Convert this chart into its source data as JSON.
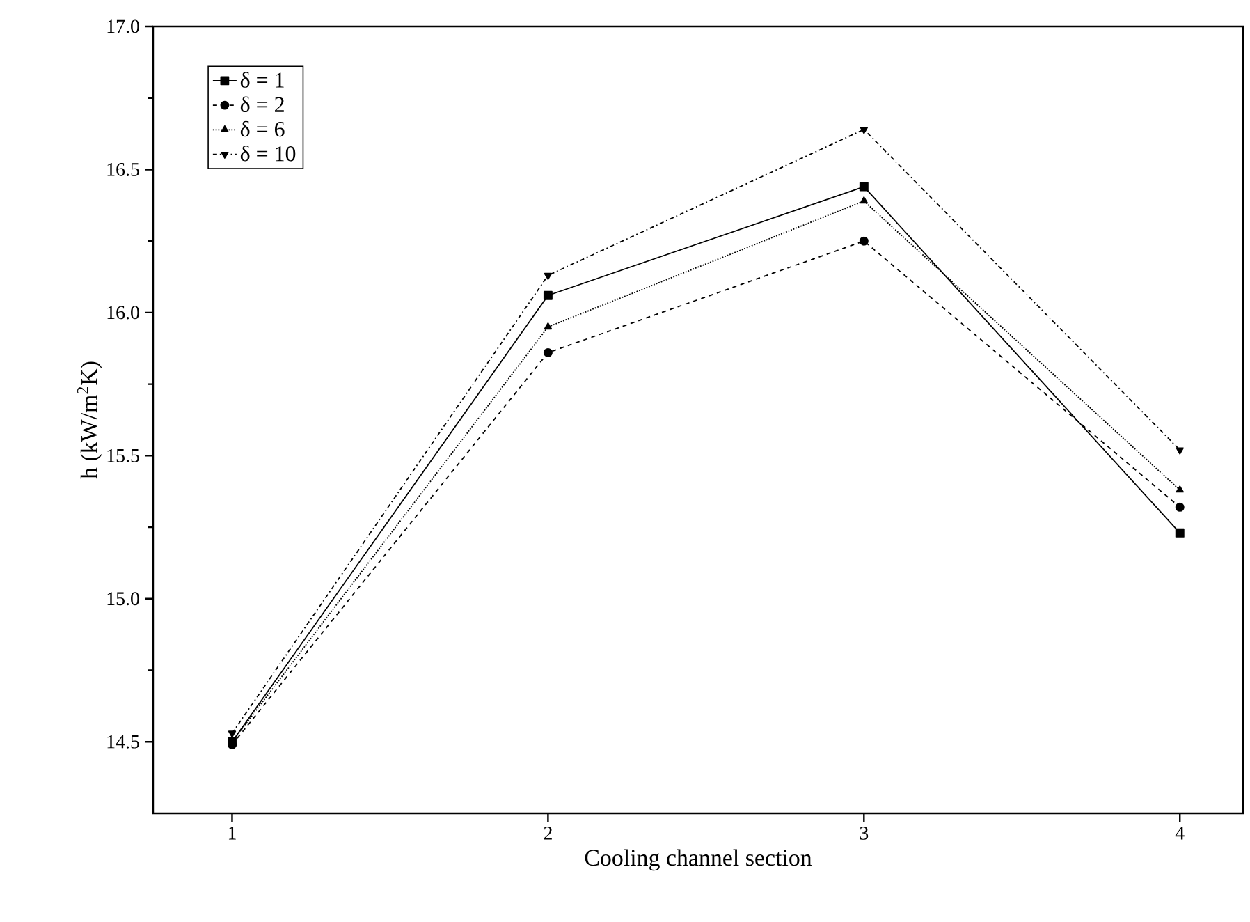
{
  "chart_data": {
    "type": "line",
    "xlabel": "Cooling channel section",
    "ylabel": "h (kW/m$^{2}$K)",
    "x": [
      1,
      2,
      3,
      4
    ],
    "xlim": [
      0.75,
      4.2
    ],
    "xticks": [
      1,
      2,
      3,
      4
    ],
    "ylim": [
      14.25,
      17.0
    ],
    "yticks": [
      {
        "value": 14.5,
        "label": "14.5"
      },
      {
        "value": 15.0,
        "label": "15.0"
      },
      {
        "value": 15.5,
        "label": "15.5"
      },
      {
        "value": 16.0,
        "label": "16.0"
      },
      {
        "value": 16.5,
        "label": "16.5"
      },
      {
        "value": 17.0,
        "label": "17.0"
      }
    ],
    "grid": false,
    "legend": "top left",
    "series": [
      {
        "name": "δ = 1",
        "color": "#000000",
        "marker": "square",
        "line_style": "solid",
        "values": [
          14.5,
          16.06,
          16.44,
          15.23
        ]
      },
      {
        "name": "δ = 2",
        "color": "#000000",
        "marker": "circle",
        "line_style": "dashed",
        "values": [
          14.49,
          15.86,
          16.25,
          15.32
        ]
      },
      {
        "name": "δ = 6",
        "color": "#000000",
        "marker": "triangle",
        "line_style": "dotted",
        "values": [
          14.5,
          15.95,
          16.39,
          15.38
        ]
      },
      {
        "name": "δ = 10",
        "color": "#000000",
        "marker": "triangle down",
        "line_style": "dashdotted",
        "values": [
          14.53,
          16.13,
          16.64,
          15.52
        ]
      }
    ]
  }
}
